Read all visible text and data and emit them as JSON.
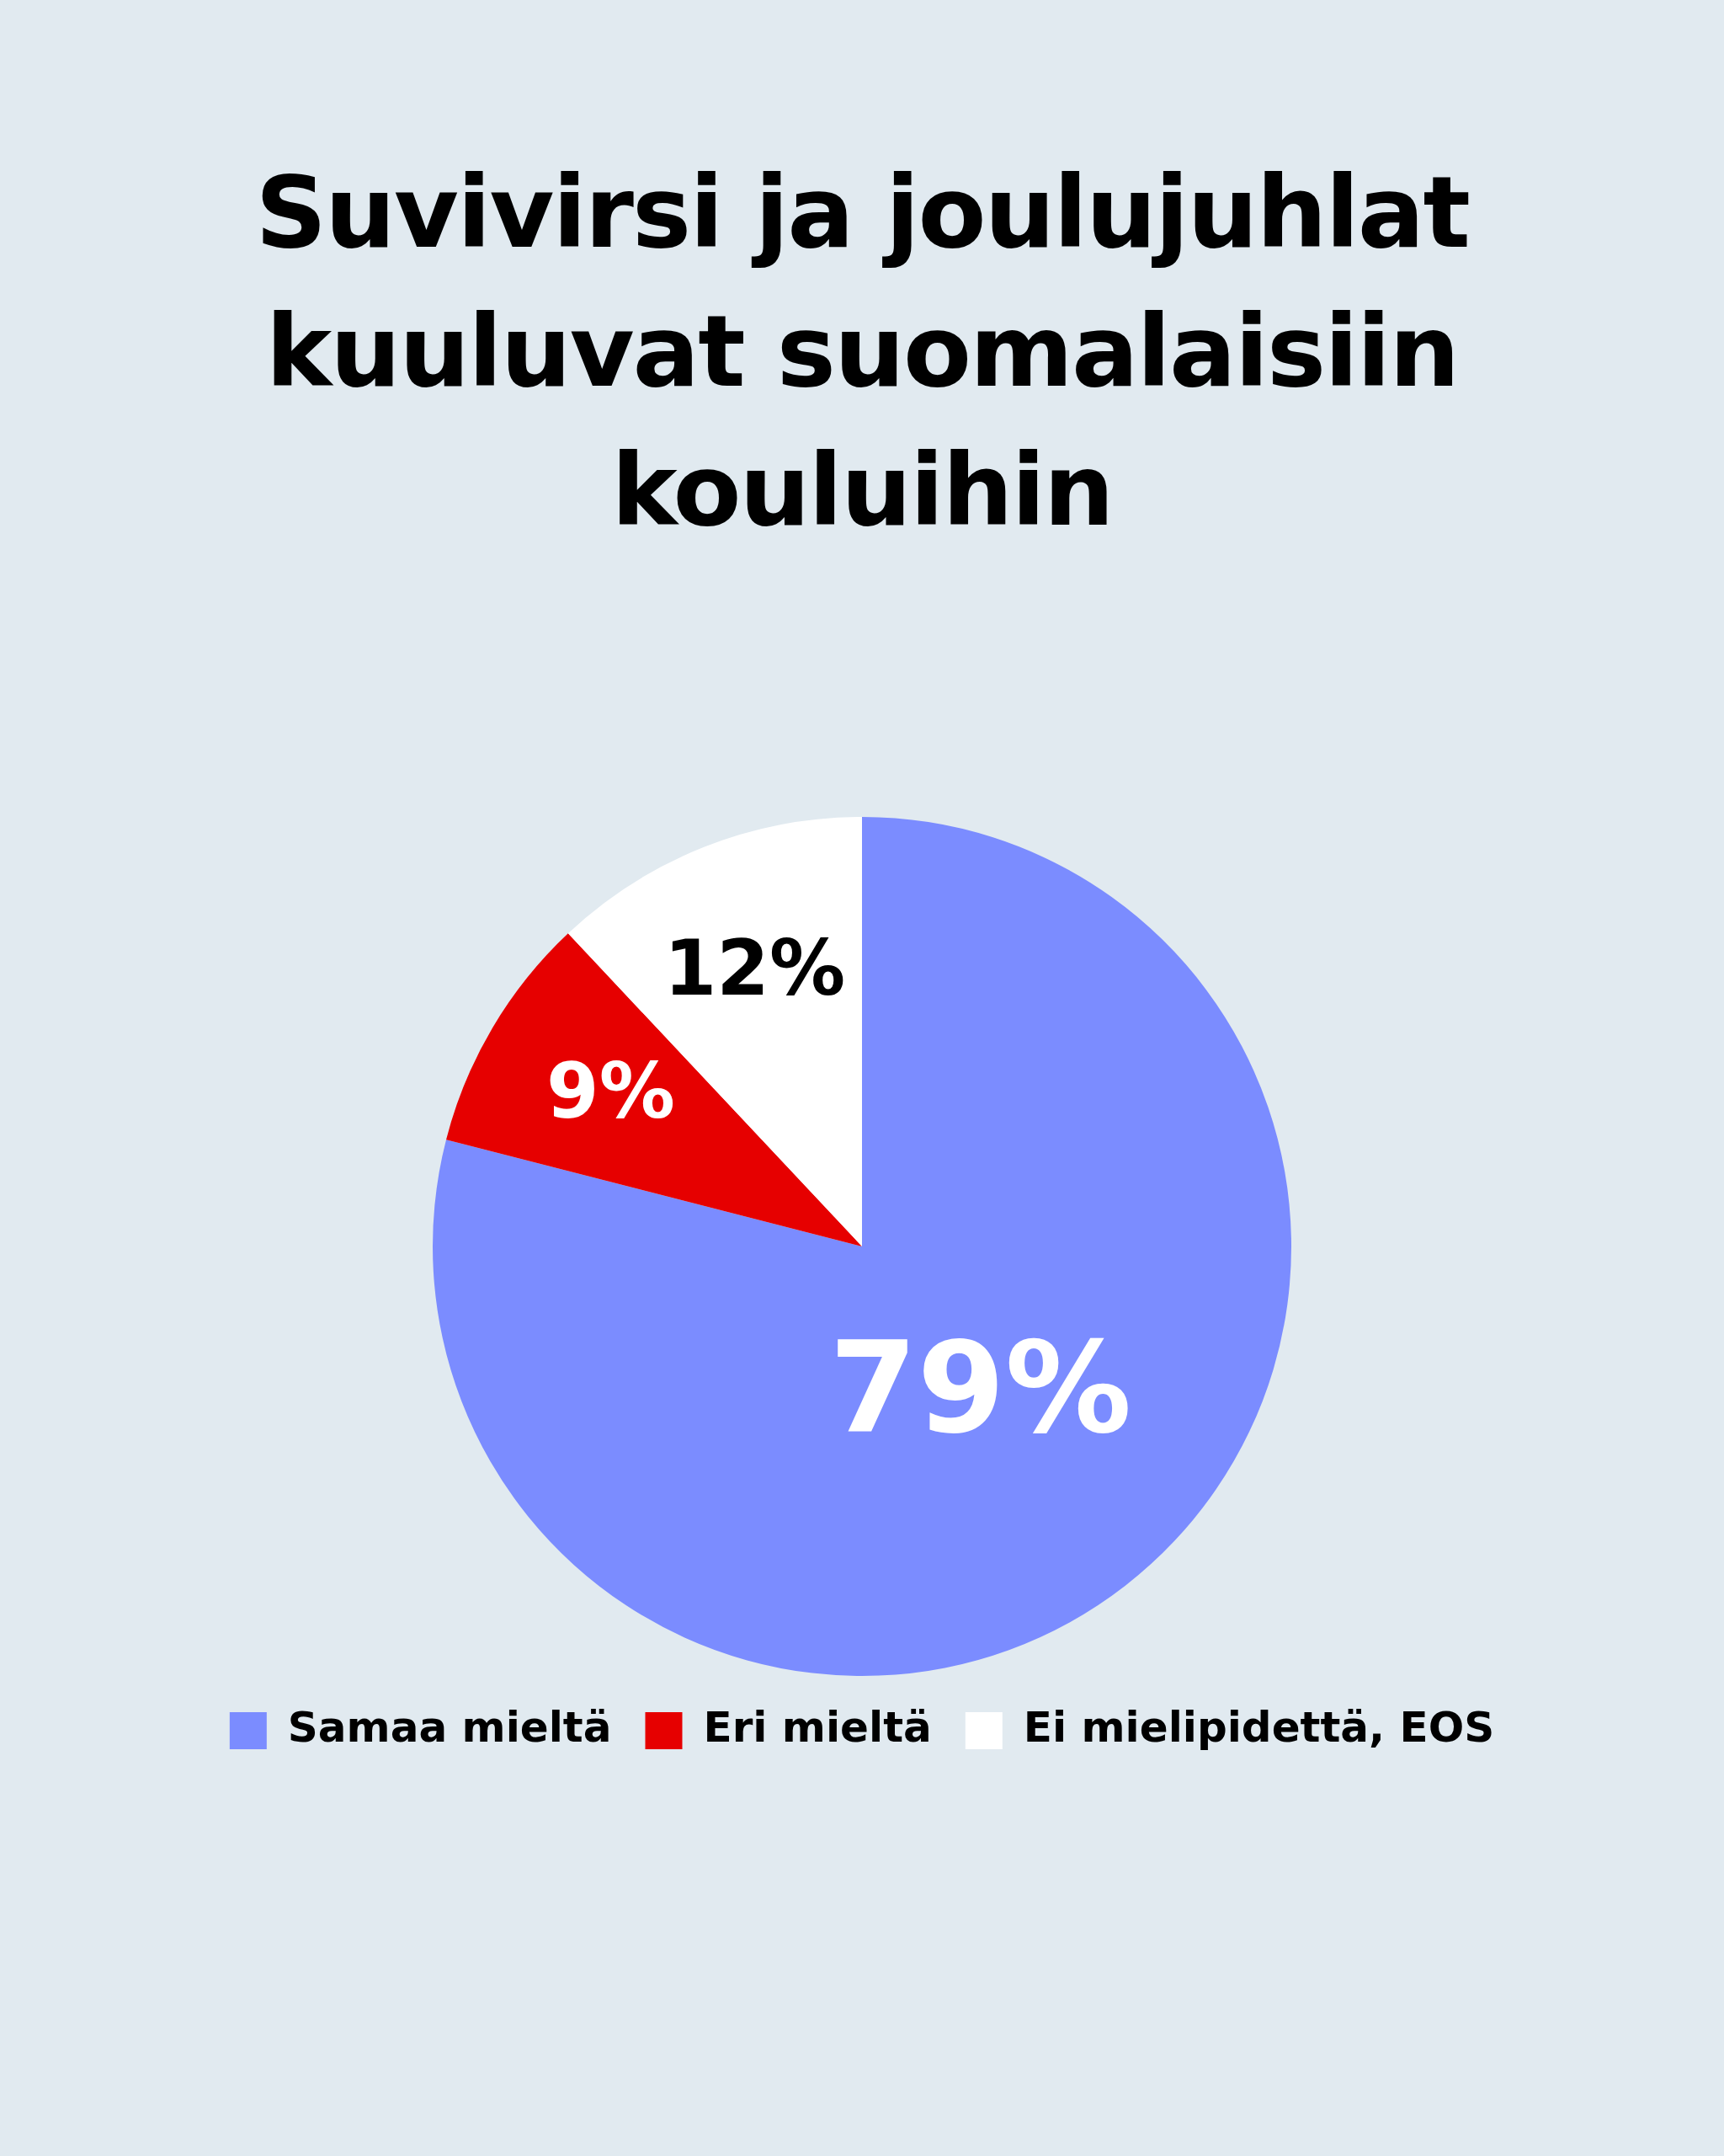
{
  "chart_data": {
    "type": "pie",
    "title": "Suvivirsi ja joulujuhlat kuuluvat suomalaisiin kouluihin",
    "categories": [
      "Samaa mieltä",
      "Eri mieltä",
      "Ei mielipidettä, EOS"
    ],
    "values": [
      79,
      9,
      12
    ],
    "value_labels": [
      "79%",
      "9%",
      "12%"
    ],
    "colors": [
      "#7b8cff",
      "#e60000",
      "#ffffff"
    ],
    "legend": "bottom"
  }
}
